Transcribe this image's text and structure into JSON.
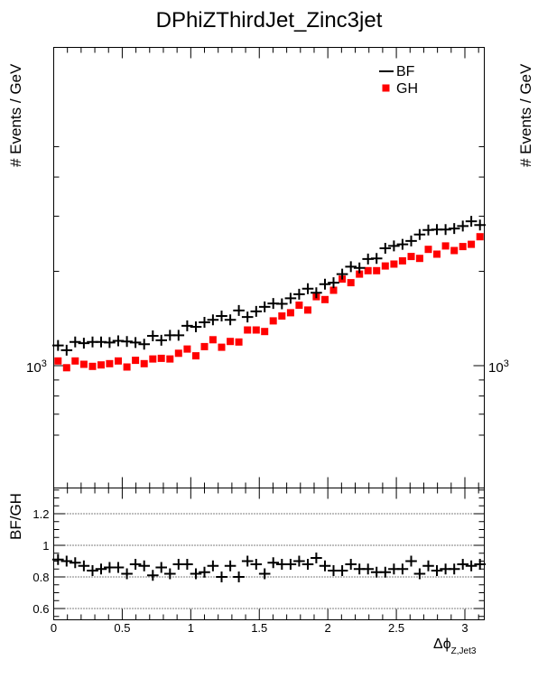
{
  "chart_data": [
    {
      "type": "scatter",
      "title": "DPhiZThirdJet_Zinc3jet",
      "ylabel": "# Events / GeV",
      "yscale": "log",
      "ytick_label": "10^3",
      "x": [
        0.0314,
        0.0942,
        0.157,
        0.22,
        0.283,
        0.346,
        0.408,
        0.471,
        0.534,
        0.597,
        0.66,
        0.723,
        0.785,
        0.848,
        0.911,
        0.974,
        1.037,
        1.1,
        1.162,
        1.225,
        1.288,
        1.351,
        1.414,
        1.477,
        1.539,
        1.602,
        1.665,
        1.728,
        1.791,
        1.854,
        1.916,
        1.979,
        2.042,
        2.105,
        2.168,
        2.231,
        2.293,
        2.356,
        2.419,
        2.482,
        2.545,
        2.608,
        2.67,
        2.733,
        2.796,
        2.859,
        2.922,
        2.985,
        3.047,
        3.11
      ],
      "series": [
        {
          "name": "BF",
          "marker": "cross",
          "color": "#000000",
          "values": [
            1160,
            1120,
            1190,
            1180,
            1190,
            1190,
            1185,
            1200,
            1195,
            1185,
            1170,
            1245,
            1205,
            1250,
            1250,
            1340,
            1330,
            1375,
            1400,
            1440,
            1400,
            1500,
            1430,
            1490,
            1540,
            1580,
            1575,
            1640,
            1690,
            1760,
            1710,
            1820,
            1840,
            1960,
            2070,
            2050,
            2190,
            2200,
            2370,
            2410,
            2440,
            2500,
            2620,
            2710,
            2720,
            2720,
            2740,
            2790,
            2890,
            2810
          ]
        },
        {
          "name": "GH",
          "marker": "square",
          "color": "#ff0000",
          "values": [
            1035,
            985,
            1035,
            1010,
            995,
            1005,
            1015,
            1035,
            990,
            1040,
            1015,
            1050,
            1055,
            1050,
            1095,
            1130,
            1075,
            1150,
            1210,
            1145,
            1195,
            1190,
            1300,
            1300,
            1285,
            1390,
            1440,
            1475,
            1560,
            1505,
            1660,
            1625,
            1740,
            1890,
            1840,
            1960,
            2010,
            2010,
            2080,
            2110,
            2160,
            2230,
            2200,
            2350,
            2270,
            2410,
            2330,
            2400,
            2440,
            2580
          ]
        }
      ],
      "legend": {
        "placement": "top-right",
        "entries": [
          "BF",
          "GH"
        ]
      }
    },
    {
      "type": "scatter",
      "ylabel": "BF/GH",
      "xlabel": "Δϕ",
      "xlabel_sub": "Z,Jet3",
      "xlim": [
        0,
        3.1416
      ],
      "ylim": [
        0.53,
        1.38
      ],
      "x_ticks": [
        "0",
        "0.5",
        "1",
        "1.5",
        "2",
        "2.5",
        "3"
      ],
      "y_ticks": [
        "0.6",
        "0.8",
        "1",
        "1.2"
      ],
      "grid": "dotted horizontal at 0.6, 0.8, 1.0, 1.2",
      "series": [
        {
          "name": "BF/GH",
          "marker": "cross",
          "color": "#000000",
          "values": [
            0.91,
            0.9,
            0.89,
            0.87,
            0.84,
            0.85,
            0.86,
            0.86,
            0.82,
            0.88,
            0.87,
            0.81,
            0.86,
            0.82,
            0.88,
            0.88,
            0.82,
            0.83,
            0.87,
            0.8,
            0.87,
            0.8,
            0.9,
            0.88,
            0.82,
            0.89,
            0.88,
            0.88,
            0.9,
            0.88,
            0.92,
            0.87,
            0.84,
            0.84,
            0.88,
            0.85,
            0.85,
            0.83,
            0.83,
            0.85,
            0.85,
            0.9,
            0.82,
            0.87,
            0.84,
            0.85,
            0.85,
            0.88,
            0.87,
            0.88
          ]
        }
      ]
    }
  ]
}
